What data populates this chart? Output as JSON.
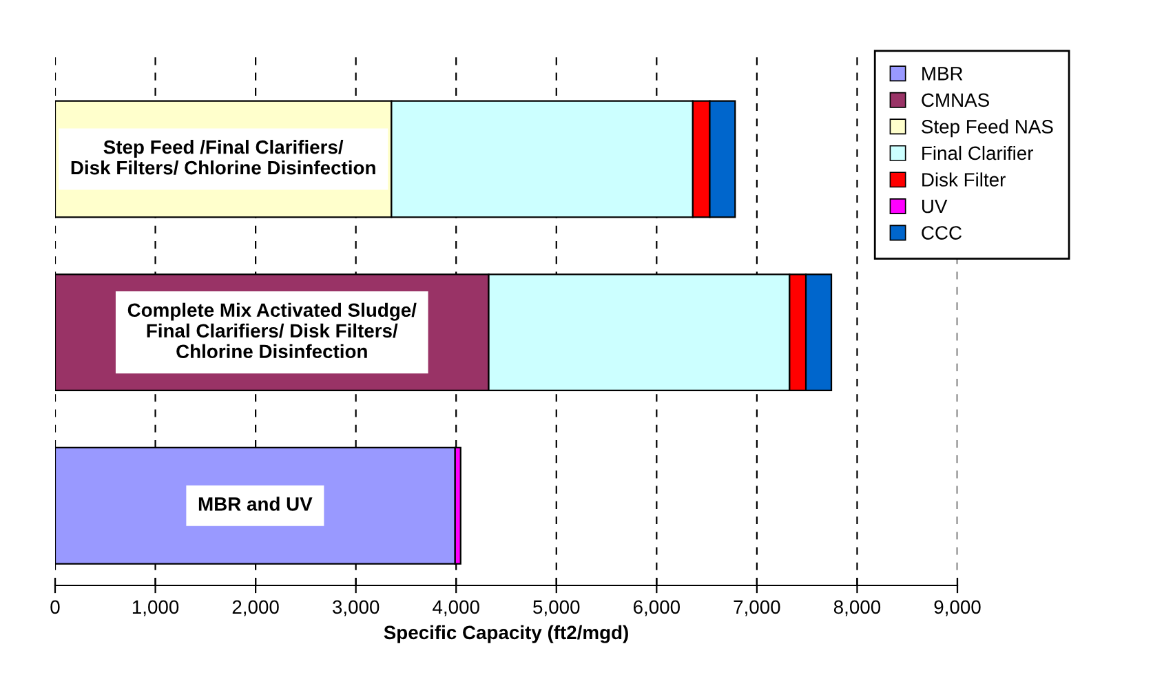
{
  "chart_data": {
    "type": "bar",
    "orientation": "horizontal",
    "stacked": true,
    "xlabel": "Specific Capacity (ft2/mgd)",
    "categories": [
      "Step Feed /Final Clarifiers/\nDisk Filters/ Chlorine Disinfection",
      "Complete Mix Activated Sludge/\nFinal Clarifiers/ Disk Filters/\nChlorine Disinfection",
      "MBR and UV"
    ],
    "series": [
      {
        "name": "MBR",
        "color": "#9999ff",
        "values": [
          null,
          null,
          3990
        ]
      },
      {
        "name": "CMNAS",
        "color": "#993366",
        "values": [
          null,
          4325,
          null
        ]
      },
      {
        "name": "Step Feed NAS",
        "color": "#ffffcc",
        "values": [
          3355,
          null,
          null
        ]
      },
      {
        "name": "Final Clarifier",
        "color": "#ccffff",
        "values": [
          3006,
          3001,
          null
        ]
      },
      {
        "name": "Disk Filter",
        "color": "#ff0000",
        "values": [
          169,
          163,
          null
        ]
      },
      {
        "name": "UV",
        "color": "#ff00ff",
        "values": [
          null,
          null,
          55
        ]
      },
      {
        "name": "CCC",
        "color": "#0066cc",
        "values": [
          253,
          254,
          null
        ]
      }
    ],
    "xlim": [
      0,
      9000
    ],
    "xticks": [
      {
        "value": 0,
        "label": "0"
      },
      {
        "value": 1000,
        "label": "1,000"
      },
      {
        "value": 2000,
        "label": "2,000"
      },
      {
        "value": 3000,
        "label": "3,000"
      },
      {
        "value": 4000,
        "label": "4,000"
      },
      {
        "value": 5000,
        "label": "5,000"
      },
      {
        "value": 6000,
        "label": "6,000"
      },
      {
        "value": 7000,
        "label": "7,000"
      },
      {
        "value": 8000,
        "label": "8,000"
      },
      {
        "value": 9000,
        "label": "9,000"
      }
    ],
    "grid": "x",
    "legend": "top right"
  }
}
